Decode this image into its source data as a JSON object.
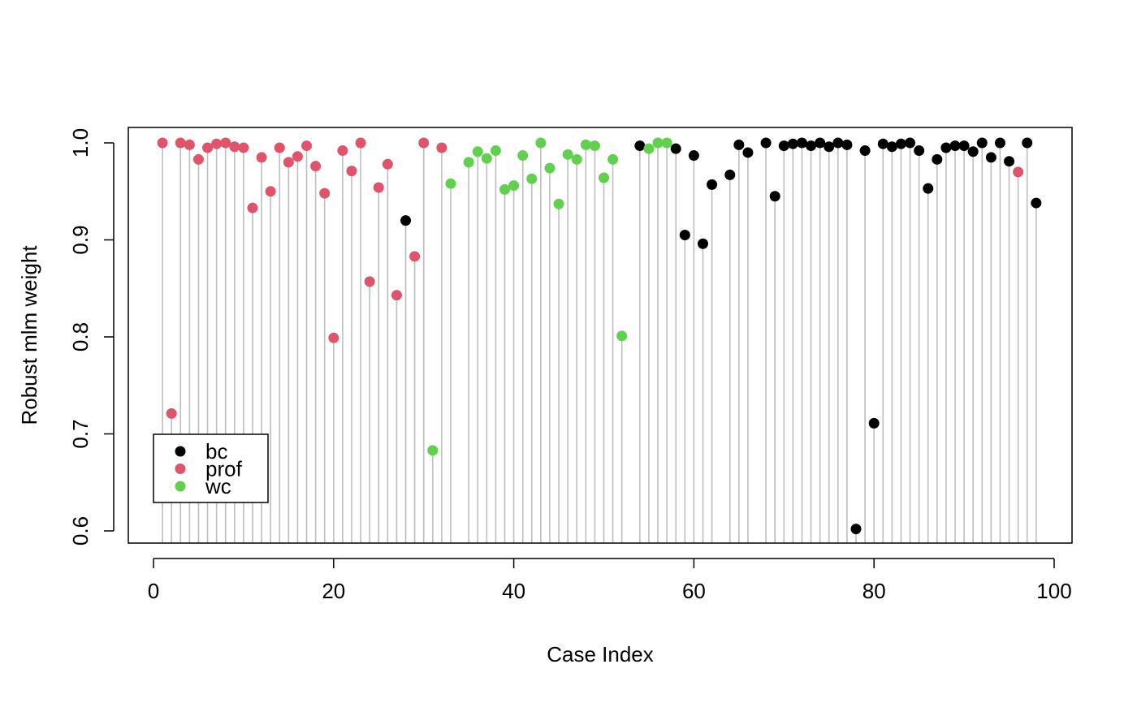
{
  "chart_data": {
    "type": "scatter",
    "style": "stem",
    "title": "",
    "xlabel": "Case Index",
    "ylabel": "Robust mlm weight",
    "xlim": [
      0,
      100
    ],
    "ylim": [
      0.6,
      1.0
    ],
    "xticks": [
      "0",
      "20",
      "40",
      "60",
      "80",
      "100"
    ],
    "yticks": [
      "0.6",
      "0.7",
      "0.8",
      "0.9",
      "1.0"
    ],
    "grid": false,
    "legend": {
      "position": "bottom-left",
      "entries": [
        {
          "label": "bc",
          "color": "#000000"
        },
        {
          "label": "prof",
          "color": "#DF536B"
        },
        {
          "label": "wc",
          "color": "#61D04F"
        }
      ]
    },
    "stem_color": "#BEBEBE",
    "series": [
      {
        "name": "bc",
        "color": "#000000",
        "points": [
          {
            "x": 28,
            "y": 0.92
          },
          {
            "x": 54,
            "y": 0.997
          },
          {
            "x": 58,
            "y": 0.994
          },
          {
            "x": 59,
            "y": 0.905
          },
          {
            "x": 60,
            "y": 0.987
          },
          {
            "x": 61,
            "y": 0.896
          },
          {
            "x": 62,
            "y": 0.957
          },
          {
            "x": 64,
            "y": 0.967
          },
          {
            "x": 65,
            "y": 0.998
          },
          {
            "x": 66,
            "y": 0.99
          },
          {
            "x": 68,
            "y": 1.0
          },
          {
            "x": 69,
            "y": 0.945
          },
          {
            "x": 70,
            "y": 0.997
          },
          {
            "x": 71,
            "y": 0.999
          },
          {
            "x": 72,
            "y": 1.0
          },
          {
            "x": 73,
            "y": 0.997
          },
          {
            "x": 74,
            "y": 1.0
          },
          {
            "x": 75,
            "y": 0.996
          },
          {
            "x": 76,
            "y": 1.0
          },
          {
            "x": 77,
            "y": 0.998
          },
          {
            "x": 78,
            "y": 0.602
          },
          {
            "x": 79,
            "y": 0.992
          },
          {
            "x": 80,
            "y": 0.711
          },
          {
            "x": 81,
            "y": 0.999
          },
          {
            "x": 82,
            "y": 0.996
          },
          {
            "x": 83,
            "y": 0.999
          },
          {
            "x": 84,
            "y": 1.0
          },
          {
            "x": 85,
            "y": 0.992
          },
          {
            "x": 86,
            "y": 0.953
          },
          {
            "x": 87,
            "y": 0.983
          },
          {
            "x": 88,
            "y": 0.995
          },
          {
            "x": 89,
            "y": 0.997
          },
          {
            "x": 90,
            "y": 0.997
          },
          {
            "x": 91,
            "y": 0.991
          },
          {
            "x": 92,
            "y": 1.0
          },
          {
            "x": 93,
            "y": 0.985
          },
          {
            "x": 94,
            "y": 1.0
          },
          {
            "x": 95,
            "y": 0.981
          },
          {
            "x": 97,
            "y": 1.0
          },
          {
            "x": 98,
            "y": 0.938
          }
        ]
      },
      {
        "name": "prof",
        "color": "#DF536B",
        "points": [
          {
            "x": 1,
            "y": 1.0
          },
          {
            "x": 2,
            "y": 0.721
          },
          {
            "x": 3,
            "y": 1.0
          },
          {
            "x": 4,
            "y": 0.998
          },
          {
            "x": 5,
            "y": 0.983
          },
          {
            "x": 6,
            "y": 0.995
          },
          {
            "x": 7,
            "y": 0.999
          },
          {
            "x": 8,
            "y": 1.0
          },
          {
            "x": 9,
            "y": 0.996
          },
          {
            "x": 10,
            "y": 0.995
          },
          {
            "x": 11,
            "y": 0.933
          },
          {
            "x": 12,
            "y": 0.985
          },
          {
            "x": 13,
            "y": 0.95
          },
          {
            "x": 14,
            "y": 0.995
          },
          {
            "x": 15,
            "y": 0.98
          },
          {
            "x": 16,
            "y": 0.986
          },
          {
            "x": 17,
            "y": 0.997
          },
          {
            "x": 18,
            "y": 0.976
          },
          {
            "x": 19,
            "y": 0.948
          },
          {
            "x": 20,
            "y": 0.799
          },
          {
            "x": 21,
            "y": 0.992
          },
          {
            "x": 22,
            "y": 0.971
          },
          {
            "x": 23,
            "y": 1.0
          },
          {
            "x": 24,
            "y": 0.857
          },
          {
            "x": 25,
            "y": 0.954
          },
          {
            "x": 26,
            "y": 0.978
          },
          {
            "x": 27,
            "y": 0.843
          },
          {
            "x": 29,
            "y": 0.883
          },
          {
            "x": 30,
            "y": 1.0
          },
          {
            "x": 32,
            "y": 0.995
          },
          {
            "x": 96,
            "y": 0.97
          }
        ]
      },
      {
        "name": "wc",
        "color": "#61D04F",
        "points": [
          {
            "x": 31,
            "y": 0.683
          },
          {
            "x": 33,
            "y": 0.958
          },
          {
            "x": 35,
            "y": 0.98
          },
          {
            "x": 36,
            "y": 0.991
          },
          {
            "x": 37,
            "y": 0.984
          },
          {
            "x": 38,
            "y": 0.992
          },
          {
            "x": 39,
            "y": 0.952
          },
          {
            "x": 40,
            "y": 0.956
          },
          {
            "x": 41,
            "y": 0.987
          },
          {
            "x": 42,
            "y": 0.963
          },
          {
            "x": 43,
            "y": 1.0
          },
          {
            "x": 44,
            "y": 0.974
          },
          {
            "x": 45,
            "y": 0.937
          },
          {
            "x": 46,
            "y": 0.988
          },
          {
            "x": 47,
            "y": 0.983
          },
          {
            "x": 48,
            "y": 0.998
          },
          {
            "x": 49,
            "y": 0.997
          },
          {
            "x": 50,
            "y": 0.964
          },
          {
            "x": 51,
            "y": 0.983
          },
          {
            "x": 52,
            "y": 0.801
          },
          {
            "x": 55,
            "y": 0.994
          },
          {
            "x": 56,
            "y": 1.0
          },
          {
            "x": 57,
            "y": 1.0
          }
        ]
      }
    ]
  }
}
